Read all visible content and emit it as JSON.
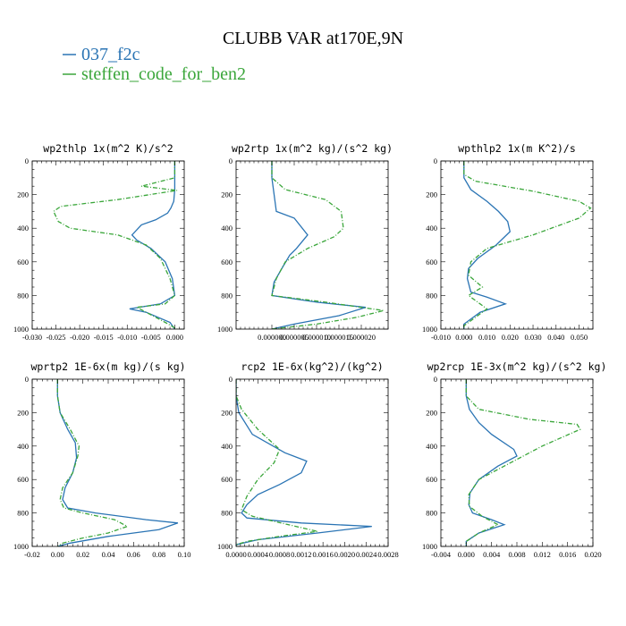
{
  "figure": {
    "title": "CLUBB VAR at170E,9N",
    "legend": [
      {
        "name": "037_f2c",
        "color": "#2a74b4",
        "dash": "solid"
      },
      {
        "name": "steffen_code_for_ben2",
        "color": "#3aa63a",
        "dash": "dashed"
      }
    ]
  },
  "chart_data": [
    {
      "type": "line",
      "title": "wp2thlp  1x(m^2 K)/s^2",
      "xlim": [
        -0.03,
        0.002
      ],
      "xticks": [
        "-0.030",
        "-0.025",
        "-0.020",
        "-0.015",
        "-0.010",
        "-0.005",
        "0.000"
      ],
      "xtick_values": [
        -0.03,
        -0.025,
        -0.02,
        -0.015,
        -0.01,
        -0.005,
        0.0
      ],
      "ylim": [
        0,
        1000
      ],
      "yticks": [
        "0",
        "200",
        "400",
        "600",
        "800",
        "1000"
      ],
      "y_inverted": true,
      "series": [
        {
          "name": "037_f2c",
          "x": [
            0.0,
            0.0,
            0.0,
            -0.0002,
            -0.0008,
            -0.0015,
            -0.004,
            -0.007,
            -0.009,
            -0.008,
            -0.005,
            -0.002,
            -0.0005,
            0.0,
            -0.003,
            -0.0095,
            -0.006,
            -0.001,
            0.0
          ],
          "y": [
            0,
            100,
            170,
            240,
            280,
            310,
            350,
            380,
            440,
            470,
            520,
            600,
            700,
            800,
            850,
            880,
            900,
            960,
            1000
          ]
        },
        {
          "name": "steffen_code_for_ben2",
          "x": [
            0.0,
            0.0,
            -0.007,
            0.0005,
            -0.012,
            -0.024,
            -0.0255,
            -0.0245,
            -0.022,
            -0.012,
            -0.006,
            -0.003,
            -0.001,
            0.0,
            -0.002,
            -0.008,
            -0.006,
            -0.002,
            0.0005
          ],
          "y": [
            0,
            100,
            150,
            175,
            230,
            270,
            300,
            360,
            400,
            440,
            500,
            580,
            700,
            800,
            850,
            870,
            900,
            960,
            1000
          ]
        }
      ]
    },
    {
      "type": "line",
      "title": "wp2rtp  1x(m^2 kg)/(s^2 kg)",
      "xlim": [
        -8e-06,
        2.6e-05
      ],
      "xticks": [
        "0.000000",
        "0.000005",
        "0.000010",
        "0.000015",
        "0.000020"
      ],
      "xtick_values": [
        0.0,
        5e-06,
        1e-05,
        1.5e-05,
        2e-05
      ],
      "ylim": [
        0,
        1000
      ],
      "yticks": [
        "0",
        "200",
        "400",
        "600",
        "800",
        "1000"
      ],
      "y_inverted": true,
      "series": [
        {
          "name": "037_f2c",
          "x": [
            0.0,
            0.0,
            5e-07,
            1e-06,
            5e-06,
            8e-06,
            5.5e-06,
            4e-06,
            2e-06,
            5e-07,
            0.0,
            1e-05,
            2.1e-05,
            1.5e-05,
            5e-06,
            0.0
          ],
          "y": [
            0,
            100,
            200,
            300,
            340,
            440,
            520,
            560,
            650,
            720,
            800,
            840,
            870,
            920,
            970,
            1000
          ]
        },
        {
          "name": "steffen_code_for_ben2",
          "x": [
            0.0,
            0.0,
            3e-06,
            1.2e-05,
            1.55e-05,
            1.6e-05,
            1.4e-05,
            8e-06,
            3e-06,
            1e-06,
            0.0,
            1.2e-05,
            2.5e-05,
            1.9e-05,
            1e-05,
            0.0
          ],
          "y": [
            0,
            100,
            170,
            230,
            300,
            400,
            450,
            520,
            600,
            700,
            800,
            840,
            890,
            930,
            970,
            1000
          ]
        }
      ]
    },
    {
      "type": "line",
      "title": "wpthlp2  1x(m K^2)/s",
      "xlim": [
        -0.01,
        0.056
      ],
      "xticks": [
        "-0.010",
        "0.000",
        "0.010",
        "0.020",
        "0.030",
        "0.040",
        "0.050"
      ],
      "xtick_values": [
        -0.01,
        0.0,
        0.01,
        0.02,
        0.03,
        0.04,
        0.05
      ],
      "ylim": [
        0,
        1000
      ],
      "yticks": [
        "0",
        "200",
        "400",
        "600",
        "800",
        "1000"
      ],
      "y_inverted": true,
      "series": [
        {
          "name": "037_f2c",
          "x": [
            0.0,
            0.0,
            0.003,
            0.01,
            0.015,
            0.019,
            0.02,
            0.014,
            0.006,
            0.002,
            0.0015,
            0.003,
            0.01,
            0.018,
            0.007,
            0.0,
            0.0
          ],
          "y": [
            0,
            100,
            170,
            240,
            300,
            360,
            420,
            500,
            580,
            640,
            700,
            780,
            810,
            850,
            900,
            970,
            1000
          ]
        },
        {
          "name": "steffen_code_for_ben2",
          "x": [
            0.0,
            0.0,
            0.005,
            0.03,
            0.05,
            0.055,
            0.05,
            0.03,
            0.01,
            0.003,
            0.002,
            0.008,
            0.002,
            0.01,
            0.004,
            0.0,
            0.0
          ],
          "y": [
            0,
            80,
            120,
            180,
            240,
            280,
            340,
            440,
            520,
            600,
            680,
            750,
            800,
            880,
            940,
            980,
            1000
          ]
        }
      ]
    },
    {
      "type": "line",
      "title": "wprtp2  1E-6x(m kg)/(s kg)",
      "xlim": [
        -0.02,
        0.1
      ],
      "xticks": [
        "-0.02",
        "0.00",
        "0.02",
        "0.04",
        "0.06",
        "0.08",
        "0.10"
      ],
      "xtick_values": [
        -0.02,
        0.0,
        0.02,
        0.04,
        0.06,
        0.08,
        0.1
      ],
      "ylim": [
        0,
        1000
      ],
      "yticks": [
        "0",
        "200",
        "400",
        "600",
        "800",
        "1000"
      ],
      "y_inverted": true,
      "series": [
        {
          "name": "037_f2c",
          "x": [
            0.0,
            0.0,
            0.002,
            0.008,
            0.014,
            0.015,
            0.012,
            0.006,
            0.004,
            0.008,
            0.03,
            0.07,
            0.095,
            0.08,
            0.04,
            0.01,
            0.0
          ],
          "y": [
            0,
            100,
            200,
            300,
            380,
            470,
            560,
            650,
            720,
            770,
            800,
            840,
            860,
            900,
            940,
            980,
            1000
          ]
        },
        {
          "name": "steffen_code_for_ben2",
          "x": [
            0.0,
            0.0,
            0.002,
            0.01,
            0.017,
            0.016,
            0.012,
            0.004,
            0.002,
            0.005,
            0.02,
            0.045,
            0.055,
            0.04,
            0.02,
            0.004,
            0.0
          ],
          "y": [
            0,
            100,
            200,
            300,
            400,
            460,
            560,
            650,
            720,
            770,
            800,
            840,
            880,
            920,
            950,
            980,
            1000
          ]
        }
      ]
    },
    {
      "type": "line",
      "title": "rcp2  1E-6x(kg^2)/(kg^2)",
      "xlim": [
        0.0,
        0.0028
      ],
      "xticks": [
        "0.0000",
        "0.0004",
        "0.0008",
        "0.0012",
        "0.0016",
        "0.0020",
        "0.0024",
        "0.0028"
      ],
      "xtick_values": [
        0.0,
        0.0004,
        0.0008,
        0.0012,
        0.0016,
        0.002,
        0.0024,
        0.0028
      ],
      "ylim": [
        0,
        1000
      ],
      "yticks": [
        "0",
        "200",
        "400",
        "600",
        "800",
        "1000"
      ],
      "y_inverted": true,
      "series": [
        {
          "name": "037_f2c",
          "x": [
            0.0,
            0.0,
            5e-05,
            0.0003,
            0.0009,
            0.0013,
            0.0012,
            0.0008,
            0.0004,
            0.0002,
            0.0001,
            0.0002,
            0.0012,
            0.0025,
            0.0015,
            0.0004,
            0.0,
            0.0
          ],
          "y": [
            0,
            100,
            200,
            330,
            440,
            490,
            560,
            630,
            690,
            750,
            800,
            830,
            860,
            880,
            920,
            960,
            990,
            1000
          ]
        },
        {
          "name": "steffen_code_for_ben2",
          "x": [
            0.0,
            0.0,
            0.0001,
            0.0004,
            0.0008,
            0.0007,
            0.0004,
            0.0002,
            0.0001,
            0.0003,
            0.0011,
            0.0015,
            0.0008,
            0.0002,
            0.0,
            0.0
          ],
          "y": [
            0,
            100,
            180,
            300,
            420,
            500,
            600,
            700,
            780,
            820,
            880,
            910,
            940,
            970,
            990,
            1000
          ]
        }
      ]
    },
    {
      "type": "line",
      "title": "wp2rcp  1E-3x(m^2 kg)/(s^2 kg)",
      "xlim": [
        -0.004,
        0.02
      ],
      "xticks": [
        "-0.004",
        "0.000",
        "0.004",
        "0.008",
        "0.012",
        "0.016",
        "0.020"
      ],
      "xtick_values": [
        -0.004,
        0.0,
        0.004,
        0.008,
        0.012,
        0.016,
        0.02
      ],
      "ylim": [
        0,
        1000
      ],
      "yticks": [
        "0",
        "200",
        "400",
        "600",
        "800",
        "1000"
      ],
      "y_inverted": true,
      "series": [
        {
          "name": "037_f2c",
          "x": [
            0.0,
            0.0,
            0.0005,
            0.002,
            0.004,
            0.0075,
            0.008,
            0.005,
            0.002,
            0.0006,
            0.0004,
            0.001,
            0.004,
            0.006,
            0.002,
            0.0,
            0.0
          ],
          "y": [
            0,
            100,
            180,
            260,
            330,
            420,
            460,
            520,
            600,
            680,
            750,
            800,
            840,
            870,
            920,
            970,
            1000
          ]
        },
        {
          "name": "steffen_code_for_ben2",
          "x": [
            0.0,
            0.0,
            0.002,
            0.01,
            0.0175,
            0.018,
            0.012,
            0.006,
            0.002,
            0.0004,
            0.0005,
            0.0025,
            0.005,
            0.002,
            0.0,
            0.0
          ],
          "y": [
            0,
            100,
            180,
            240,
            270,
            300,
            400,
            520,
            600,
            690,
            760,
            820,
            870,
            920,
            970,
            1000
          ]
        }
      ]
    }
  ]
}
